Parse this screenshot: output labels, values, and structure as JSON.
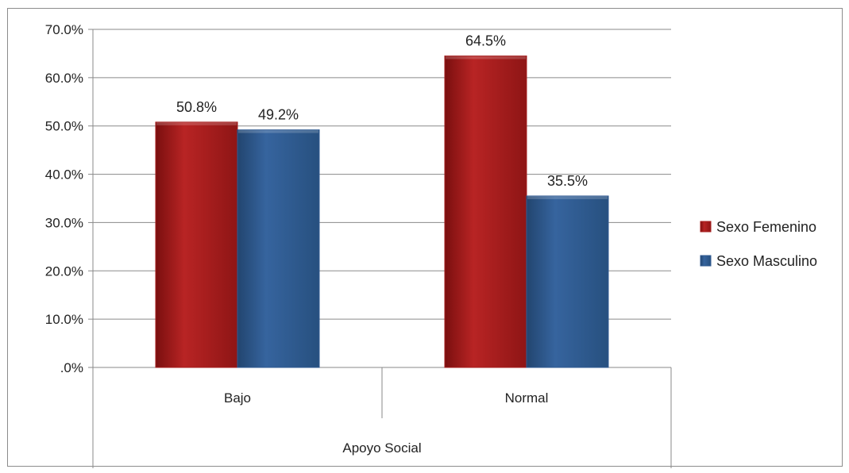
{
  "chart_data": {
    "type": "bar",
    "title": "",
    "xlabel": "Apoyo Social",
    "ylabel": "",
    "categories": [
      "Bajo",
      "Normal"
    ],
    "series": [
      {
        "name": "Sexo Femenino",
        "values": [
          50.8,
          64.5
        ],
        "color": "#a51d1d"
      },
      {
        "name": "Sexo Masculino",
        "values": [
          49.2,
          35.5
        ],
        "color": "#2f5a92"
      }
    ],
    "data_labels": [
      [
        "50.8%",
        "64.5%"
      ],
      [
        "49.2%",
        "35.5%"
      ]
    ],
    "ylim": [
      0,
      70
    ],
    "y_ticks": [
      ".0%",
      "10.0%",
      "20.0%",
      "30.0%",
      "40.0%",
      "50.0%",
      "60.0%",
      "70.0%"
    ],
    "grid": true,
    "legend": "right"
  }
}
